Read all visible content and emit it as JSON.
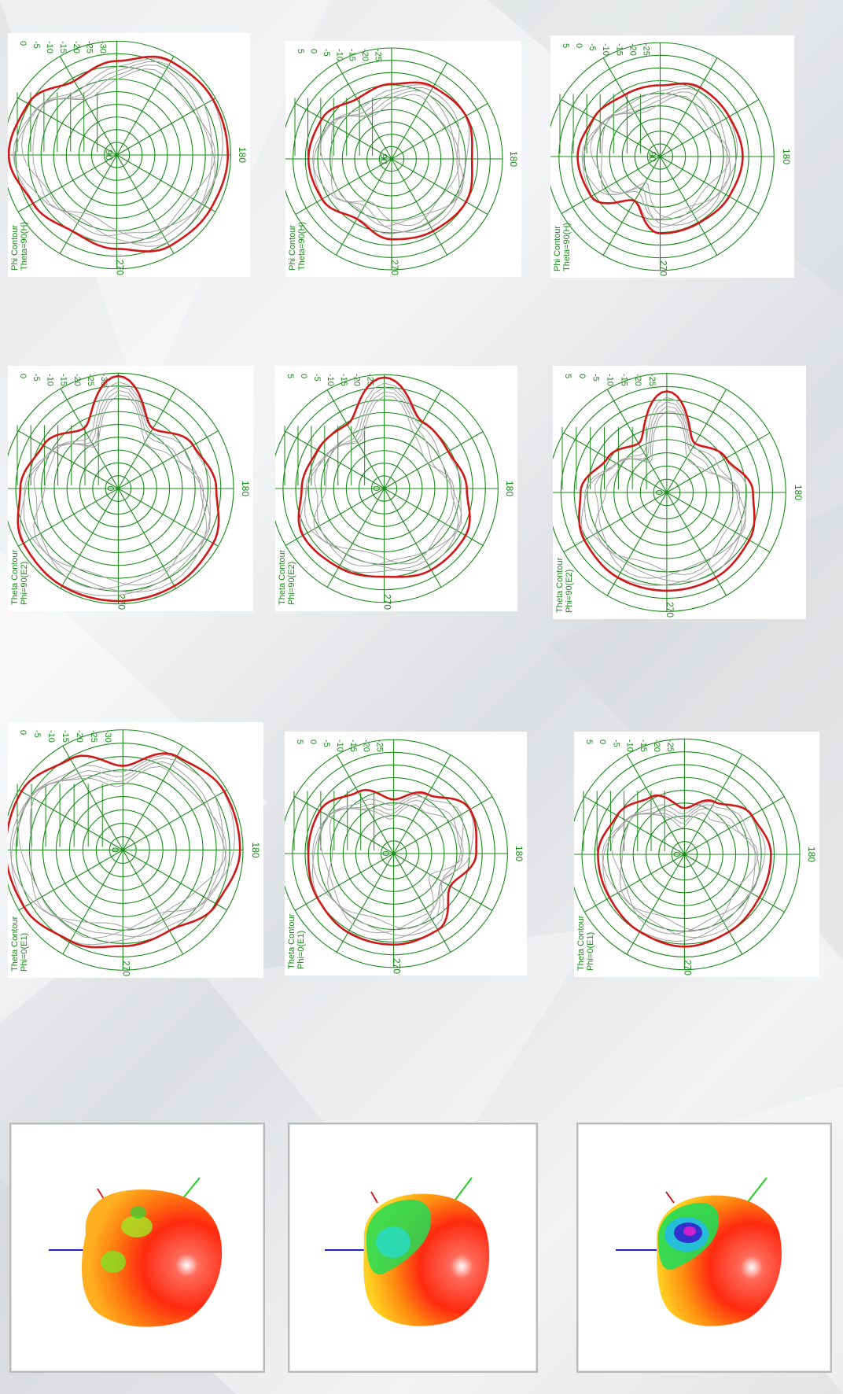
{
  "colors": {
    "grid": "#1a8a1a",
    "measured_trace": "#d01818",
    "other_traces": "#a0a0a0",
    "axis_x": "#cc2222",
    "axis_y": "#22cc22",
    "axis_z": "#2222cc"
  },
  "ring_labels": {
    "set_a": [
      "0",
      "-5",
      "-10",
      "-15",
      "-20",
      "-25",
      "-30"
    ],
    "set_b": [
      "5",
      "0",
      "-5",
      "-10",
      "-15",
      "-20",
      "-25"
    ],
    "set_c": [
      "5",
      "0",
      "-5",
      "-10",
      "-15",
      "-20",
      "-25"
    ],
    "phi_a": [
      "0",
      "-5",
      "-10",
      "-15",
      "-20",
      "-25",
      "-30"
    ],
    "phi_b": [
      "5",
      "0",
      "-5",
      "-10",
      "-15",
      "-20",
      "-25"
    ],
    "phi_c": [
      "5",
      "0",
      "-5",
      "-10",
      "-15",
      "-20",
      "-25"
    ]
  },
  "chart_data": [
    {
      "type": "polar",
      "id": "theta-phi0-a",
      "contour": "Theta Contour",
      "cut": "Phi=0(E1)",
      "angle_labels": [
        "0",
        "270",
        "180"
      ],
      "rings": [
        "0",
        "-5",
        "-10",
        "-15",
        "-20",
        "-25",
        "-30"
      ],
      "angles": [
        0,
        30,
        60,
        90,
        120,
        150,
        180,
        210,
        240,
        270,
        300,
        330
      ],
      "values": [
        -12,
        -4,
        -1,
        -1,
        -4,
        -9,
        -8,
        -5,
        -2,
        -1,
        -1,
        -5
      ]
    },
    {
      "type": "polar",
      "id": "theta-phi0-b",
      "contour": "Theta Contour",
      "cut": "Phi=0(E1)",
      "angle_labels": [
        "0",
        "270",
        "180"
      ],
      "rings": [
        "5",
        "0",
        "-5",
        "-10",
        "-15",
        "-20",
        "-25"
      ],
      "angles": [
        0,
        30,
        60,
        90,
        120,
        150,
        180,
        210,
        240,
        270,
        300,
        330
      ],
      "values": [
        -16,
        -11,
        -4,
        -6,
        -12,
        -4,
        -3,
        -3,
        -4,
        -5,
        -5,
        -10
      ]
    },
    {
      "type": "polar",
      "id": "theta-phi0-c",
      "contour": "Theta Contour",
      "cut": "Phi=0(E1)",
      "angle_labels": [
        "0",
        "270",
        "180"
      ],
      "rings": [
        "5",
        "0",
        "-5",
        "-10",
        "-15",
        "-20",
        "-25"
      ],
      "angles": [
        0,
        30,
        60,
        90,
        120,
        150,
        180,
        210,
        240,
        270,
        300,
        330
      ],
      "values": [
        -19,
        -14,
        -8,
        -5,
        -5,
        -4,
        -3,
        -4,
        -5,
        -5,
        -8,
        -12
      ]
    },
    {
      "type": "polar",
      "id": "theta-phi90-a",
      "contour": "Theta Contour",
      "cut": "Phi=90(E2)",
      "angle_labels": [
        "0",
        "270",
        "180"
      ],
      "rings": [
        "0",
        "-5",
        "-10",
        "-15",
        "-20",
        "-25",
        "-30"
      ],
      "angles": [
        0,
        30,
        60,
        90,
        120,
        150,
        180,
        210,
        240,
        270,
        300,
        330
      ],
      "values": [
        -1,
        -16,
        -10,
        -6,
        -2,
        -1,
        -1,
        -1,
        -2,
        -6,
        -10,
        -16
      ]
    },
    {
      "type": "polar",
      "id": "theta-phi90-b",
      "contour": "Theta Contour",
      "cut": "Phi=90(E2)",
      "angle_labels": [
        "0",
        "270",
        "180"
      ],
      "rings": [
        "5",
        "0",
        "-5",
        "-10",
        "-15",
        "-20",
        "-25"
      ],
      "angles": [
        0,
        30,
        60,
        90,
        120,
        150,
        180,
        210,
        240,
        270,
        300,
        330
      ],
      "values": [
        4,
        -8,
        -9,
        -6,
        -2,
        -2,
        -4,
        -3,
        -2,
        -6,
        -8,
        -9
      ]
    },
    {
      "type": "polar",
      "id": "theta-phi90-c",
      "contour": "Theta Contour",
      "cut": "Phi=90(E2)",
      "angle_labels": [
        "0",
        "270",
        "180"
      ],
      "rings": [
        "5",
        "0",
        "-5",
        "-10",
        "-15",
        "-20",
        "-25"
      ],
      "angles": [
        0,
        30,
        60,
        90,
        120,
        150,
        180,
        210,
        240,
        270,
        300,
        330
      ],
      "values": [
        -1,
        -16,
        -12,
        -6,
        -3,
        -2,
        -2,
        -2,
        -3,
        -6,
        -12,
        -16
      ]
    },
    {
      "type": "polar",
      "id": "phi-theta90-a",
      "contour": "Phi Contour",
      "cut": "Theta=90(H)",
      "angle_labels": [
        "90",
        "270",
        "180"
      ],
      "rings": [
        "0",
        "-5",
        "-10",
        "-15",
        "-20",
        "-25",
        "-30"
      ],
      "angles": [
        0,
        30,
        60,
        90,
        120,
        150,
        180,
        210,
        240,
        270,
        300,
        330
      ],
      "values": [
        -7,
        -2,
        -1,
        -1,
        -2,
        -3,
        -7,
        -9,
        -6,
        -2,
        -4,
        -10
      ]
    },
    {
      "type": "polar",
      "id": "phi-theta90-b",
      "contour": "Phi Contour",
      "cut": "Theta=90(H)",
      "angle_labels": [
        "90",
        "270",
        "180"
      ],
      "rings": [
        "5",
        "0",
        "-5",
        "-10",
        "-15",
        "-20",
        "-25"
      ],
      "angles": [
        0,
        30,
        60,
        90,
        120,
        150,
        180,
        210,
        240,
        270,
        300,
        330
      ],
      "values": [
        -8,
        -5,
        -4,
        -6,
        -4,
        -5,
        -6,
        -10,
        -6,
        -5,
        -6,
        -10
      ]
    },
    {
      "type": "polar",
      "id": "phi-theta90-c",
      "contour": "Phi Contour",
      "cut": "Theta=90(H)",
      "angle_labels": [
        "90",
        "270",
        "180"
      ],
      "rings": [
        "5",
        "0",
        "-5",
        "-10",
        "-15",
        "-20",
        "-25"
      ],
      "angles": [
        0,
        30,
        60,
        90,
        120,
        150,
        180,
        210,
        240,
        270,
        300,
        330
      ],
      "values": [
        -10,
        -7,
        -7,
        -6,
        -7,
        -8,
        -8,
        -17,
        -7,
        -6,
        -8,
        -10
      ]
    }
  ]
}
